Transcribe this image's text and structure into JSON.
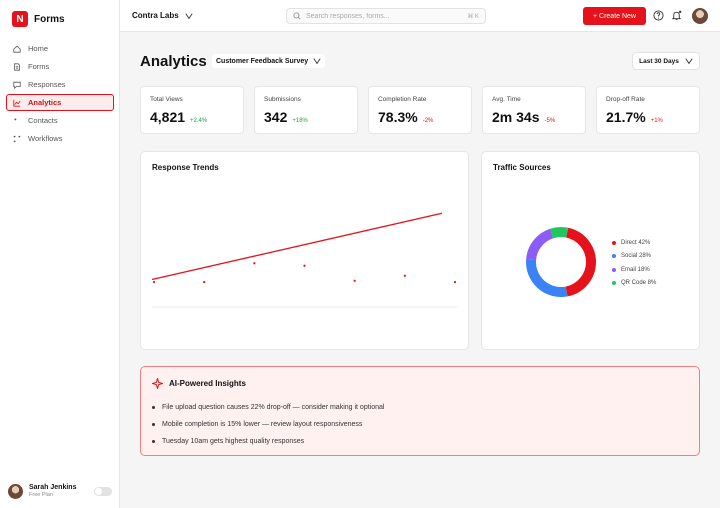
{
  "brand": {
    "name": "Forms",
    "logo_letter": "N",
    "accent": "#e5121b"
  },
  "sidebar": {
    "items": [
      {
        "label": "Home",
        "icon": "home-icon"
      },
      {
        "label": "Forms",
        "icon": "file-icon"
      },
      {
        "label": "Responses",
        "icon": "message-icon"
      },
      {
        "label": "Analytics",
        "icon": "chart-line-icon",
        "active": true
      },
      {
        "label": "Contacts",
        "icon": "dot-icon"
      },
      {
        "label": "Workflows",
        "icon": "workflow-icon"
      }
    ],
    "user": {
      "name": "Sarah Jenkins",
      "plan": "Free Plan"
    }
  },
  "header": {
    "workspace": "Contra Labs",
    "search_placeholder": "Search responses, forms...",
    "search_shortcut": "⌘ K",
    "create_label": "+ Create New"
  },
  "page": {
    "title": "Analytics",
    "survey": "Customer Feedback Survey",
    "range": "Last 30 Days"
  },
  "stats": [
    {
      "label": "Total Views",
      "value": "4,821",
      "delta": "+2.4%",
      "trend": "pos"
    },
    {
      "label": "Submissions",
      "value": "342",
      "delta": "+18%",
      "trend": "pos"
    },
    {
      "label": "Completion Rate",
      "value": "78.3%",
      "delta": "-2%",
      "trend": "neg"
    },
    {
      "label": "Avg. Time",
      "value": "2m 34s",
      "delta": "-5%",
      "trend": "neg"
    },
    {
      "label": "Drop-off Rate",
      "value": "21.7%",
      "delta": "+1%",
      "trend": "neg"
    }
  ],
  "trends": {
    "title": "Response Trends",
    "line_color": "#e5121b",
    "points": [
      2,
      2,
      3.5,
      3.3,
      2.1,
      2.5,
      2
    ],
    "trend": [
      2.2,
      7.5
    ],
    "ymax": 10
  },
  "traffic": {
    "title": "Traffic Sources",
    "chart_data": {
      "type": "pie",
      "slices": [
        {
          "name": "Direct 42%",
          "value": 42,
          "color": "#e5121b"
        },
        {
          "name": "Social 28%",
          "value": 28,
          "color": "#3b82f6"
        },
        {
          "name": "Email 18%",
          "value": 18,
          "color": "#8b5cf6"
        },
        {
          "name": "QR Code 8%",
          "value": 8,
          "color": "#22c55e"
        }
      ]
    }
  },
  "insights": {
    "title": "AI-Powered Insights",
    "items": [
      "File upload question causes 22% drop-off — consider making it optional",
      "Mobile completion is 15% lower — review layout responsiveness",
      "Tuesday 10am gets highest quality responses"
    ]
  }
}
